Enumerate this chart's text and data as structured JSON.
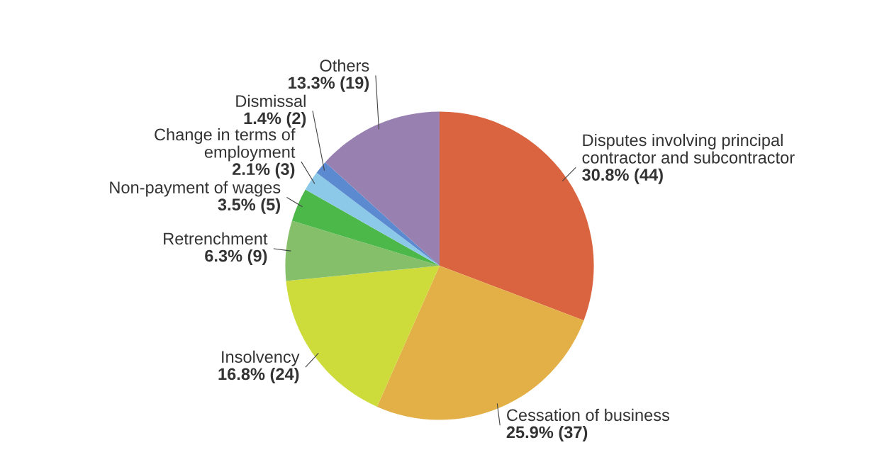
{
  "chart_data": {
    "type": "pie",
    "categories": [
      "Disputes involving principal\ncontractor and subcontractor",
      "Cessation of business",
      "Insolvency",
      "Retrenchment",
      "Non-payment of wages",
      "Change in terms of\nemployment",
      "Dismissal",
      "Others"
    ],
    "values": [
      44,
      37,
      24,
      9,
      5,
      3,
      2,
      19
    ],
    "value_labels": [
      "30.8% (44)",
      "25.9% (37)",
      "16.8% (24)",
      "6.3% (9)",
      "3.5% (5)",
      "2.1% (3)",
      "1.4% (2)",
      "13.3% (19)"
    ],
    "colors": [
      "#d9643f",
      "#e3b048",
      "#cddc3a",
      "#85bf6a",
      "#4cb84a",
      "#8cc8e8",
      "#5b8ad0",
      "#9880b0"
    ]
  }
}
